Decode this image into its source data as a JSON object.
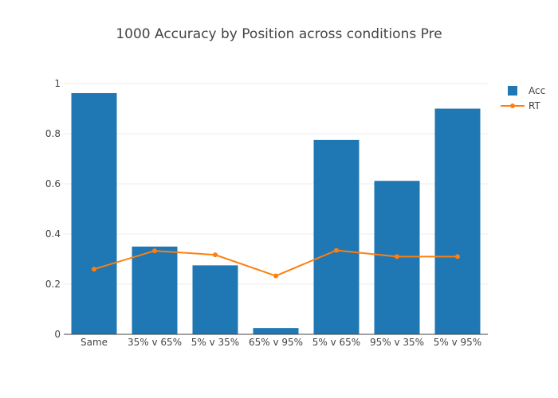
{
  "chart_data": {
    "type": "bar",
    "title": "1000 Accuracy by Position across conditions Pre",
    "xlabel": "",
    "ylabel": "",
    "categories": [
      "Same",
      "35% v 65%",
      "5% v 35%",
      "65% v 95%",
      "5% v 65%",
      "95% v 35%",
      "5% v 95%"
    ],
    "ylim": [
      0,
      1
    ],
    "yticks": [
      0,
      0.2,
      0.4,
      0.6,
      0.8,
      1
    ],
    "ytick_labels": [
      "0",
      "0.2",
      "0.4",
      "0.6",
      "0.8",
      "1"
    ],
    "grid": true,
    "legend_position": "top-right",
    "series": [
      {
        "name": "Acc",
        "type": "bar",
        "color": "#1f77b4",
        "values": [
          0.962,
          0.35,
          0.275,
          0.025,
          0.775,
          0.612,
          0.9
        ]
      },
      {
        "name": "RT",
        "type": "line",
        "color": "#ff7f0e",
        "values": [
          0.26,
          0.333,
          0.317,
          0.233,
          0.335,
          0.31,
          0.31
        ]
      }
    ]
  }
}
